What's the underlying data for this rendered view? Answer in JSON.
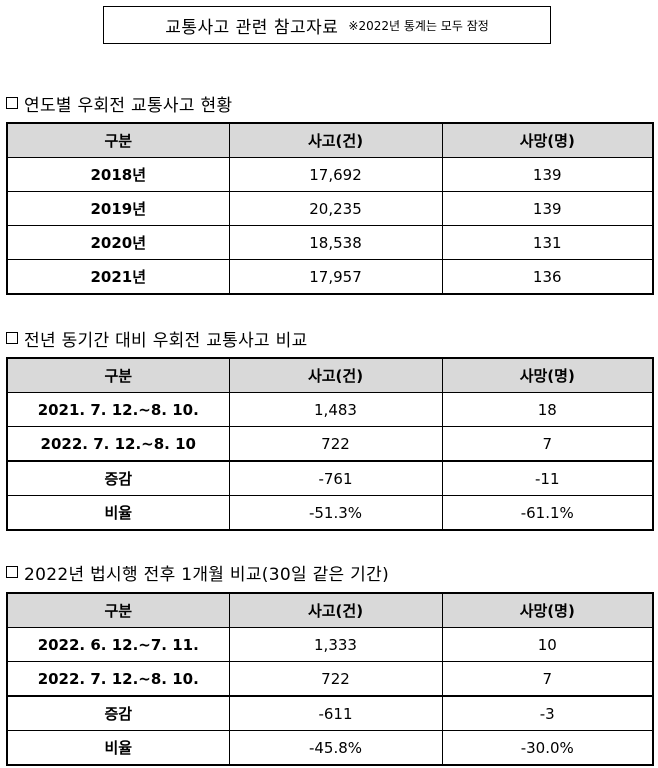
{
  "title": {
    "main": "교통사고 관련 참고자료",
    "note": "※2022년 통계는 모두 잠정"
  },
  "sections": [
    {
      "heading": "연도별 우회전 교통사고 현황",
      "headers": [
        "구분",
        "사고(건)",
        "사망(명)"
      ],
      "rows": [
        [
          "2018년",
          "17,692",
          "139"
        ],
        [
          "2019년",
          "20,235",
          "139"
        ],
        [
          "2020년",
          "18,538",
          "131"
        ],
        [
          "2021년",
          "17,957",
          "136"
        ]
      ]
    },
    {
      "heading": "전년 동기간 대비 우회전 교통사고 비교",
      "headers": [
        "구분",
        "사고(건)",
        "사망(명)"
      ],
      "rows": [
        [
          "2021. 7. 12.~8. 10.",
          "1,483",
          "18"
        ],
        [
          "2022. 7. 12.~8. 10",
          "722",
          "7"
        ],
        [
          "증감",
          "-761",
          "-11"
        ],
        [
          "비율",
          "-51.3%",
          "-61.1%"
        ]
      ]
    },
    {
      "heading": "2022년 법시행 전후 1개월 비교(30일 같은 기간)",
      "headers": [
        "구분",
        "사고(건)",
        "사망(명)"
      ],
      "rows": [
        [
          "2022. 6. 12.~7. 11.",
          "1,333",
          "10"
        ],
        [
          "2022. 7. 12.~8. 10.",
          "722",
          "7"
        ],
        [
          "증감",
          "-611",
          "-3"
        ],
        [
          "비율",
          "-45.8%",
          "-30.0%"
        ]
      ]
    }
  ]
}
